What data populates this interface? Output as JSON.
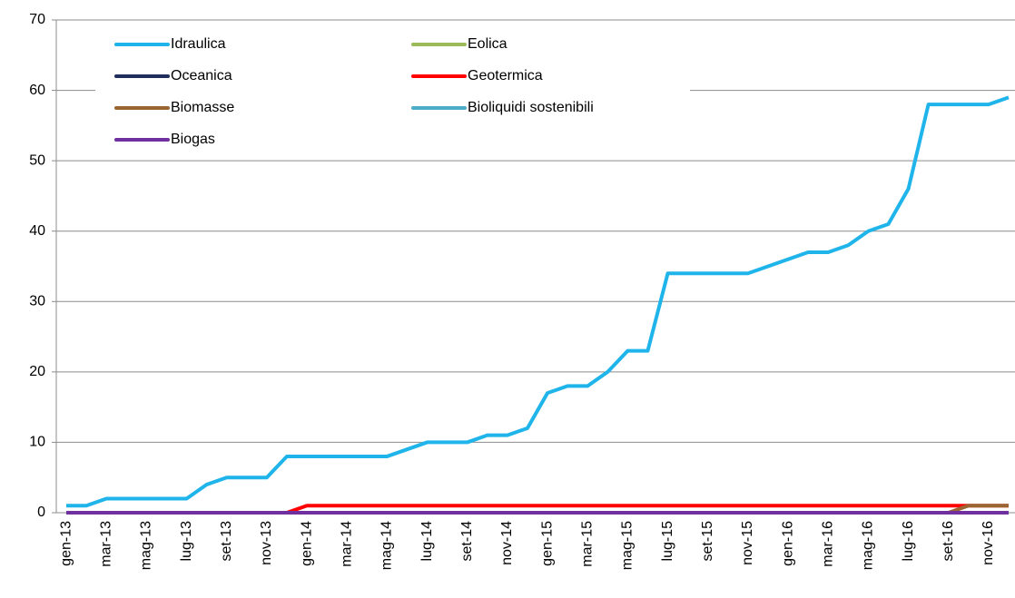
{
  "chart_data": {
    "type": "line",
    "categories": [
      "gen-13",
      null,
      "mar-13",
      null,
      "mag-13",
      null,
      "lug-13",
      null,
      "set-13",
      null,
      "nov-13",
      null,
      "gen-14",
      null,
      "mar-14",
      null,
      "mag-14",
      null,
      "lug-14",
      null,
      "set-14",
      null,
      "nov-14",
      null,
      "gen-15",
      null,
      "mar-15",
      null,
      "mag-15",
      null,
      "lug-15",
      null,
      "set-15",
      null,
      "nov-15",
      null,
      "gen-16",
      null,
      "mar-16",
      null,
      "mag-16",
      null,
      "lug-16",
      null,
      "set-16",
      null,
      "nov-16",
      null
    ],
    "series": [
      {
        "name": "Idraulica",
        "color": "#1fb4ea",
        "values": [
          1,
          1,
          2,
          2,
          2,
          2,
          2,
          4,
          5,
          5,
          5,
          8,
          8,
          8,
          8,
          8,
          8,
          9,
          10,
          10,
          10,
          11,
          11,
          12,
          17,
          18,
          18,
          20,
          23,
          23,
          34,
          34,
          34,
          34,
          34,
          35,
          36,
          37,
          37,
          38,
          40,
          41,
          46,
          58,
          58,
          58,
          58,
          59
        ]
      },
      {
        "name": "Eolica",
        "color": "#9bbb59",
        "values": [
          0,
          0,
          0,
          0,
          0,
          0,
          0,
          0,
          0,
          0,
          0,
          0,
          0,
          0,
          0,
          0,
          0,
          0,
          0,
          0,
          0,
          0,
          0,
          0,
          0,
          0,
          0,
          0,
          0,
          0,
          0,
          0,
          0,
          0,
          0,
          0,
          0,
          0,
          0,
          0,
          0,
          0,
          0,
          0,
          0,
          0,
          0,
          0
        ]
      },
      {
        "name": "Oceanica",
        "color": "#1f2d5a",
        "values": [
          0,
          0,
          0,
          0,
          0,
          0,
          0,
          0,
          0,
          0,
          0,
          0,
          0,
          0,
          0,
          0,
          0,
          0,
          0,
          0,
          0,
          0,
          0,
          0,
          0,
          0,
          0,
          0,
          0,
          0,
          0,
          0,
          0,
          0,
          0,
          0,
          0,
          0,
          0,
          0,
          0,
          0,
          0,
          0,
          0,
          0,
          0,
          0
        ]
      },
      {
        "name": "Geotermica",
        "color": "#ff0000",
        "values": [
          0,
          0,
          0,
          0,
          0,
          0,
          0,
          0,
          0,
          0,
          0,
          0,
          1,
          1,
          1,
          1,
          1,
          1,
          1,
          1,
          1,
          1,
          1,
          1,
          1,
          1,
          1,
          1,
          1,
          1,
          1,
          1,
          1,
          1,
          1,
          1,
          1,
          1,
          1,
          1,
          1,
          1,
          1,
          1,
          1,
          1,
          1,
          1
        ]
      },
      {
        "name": "Biomasse",
        "color": "#996633",
        "values": [
          0,
          0,
          0,
          0,
          0,
          0,
          0,
          0,
          0,
          0,
          0,
          0,
          0,
          0,
          0,
          0,
          0,
          0,
          0,
          0,
          0,
          0,
          0,
          0,
          0,
          0,
          0,
          0,
          0,
          0,
          0,
          0,
          0,
          0,
          0,
          0,
          0,
          0,
          0,
          0,
          0,
          0,
          0,
          0,
          0,
          1,
          1,
          1
        ]
      },
      {
        "name": "Bioliquidi sostenibili",
        "color": "#4bacc6",
        "values": [
          0,
          0,
          0,
          0,
          0,
          0,
          0,
          0,
          0,
          0,
          0,
          0,
          0,
          0,
          0,
          0,
          0,
          0,
          0,
          0,
          0,
          0,
          0,
          0,
          0,
          0,
          0,
          0,
          0,
          0,
          0,
          0,
          0,
          0,
          0,
          0,
          0,
          0,
          0,
          0,
          0,
          0,
          0,
          0,
          0,
          0,
          0,
          0
        ]
      },
      {
        "name": "Biogas",
        "color": "#7030a0",
        "values": [
          0,
          0,
          0,
          0,
          0,
          0,
          0,
          0,
          0,
          0,
          0,
          0,
          0,
          0,
          0,
          0,
          0,
          0,
          0,
          0,
          0,
          0,
          0,
          0,
          0,
          0,
          0,
          0,
          0,
          0,
          0,
          0,
          0,
          0,
          0,
          0,
          0,
          0,
          0,
          0,
          0,
          0,
          0,
          0,
          0,
          0,
          0,
          0
        ]
      }
    ],
    "ylim": [
      0,
      70
    ],
    "yticks": [
      0,
      10,
      20,
      30,
      40,
      50,
      60,
      70
    ],
    "grid": true,
    "legend": "top-left"
  }
}
